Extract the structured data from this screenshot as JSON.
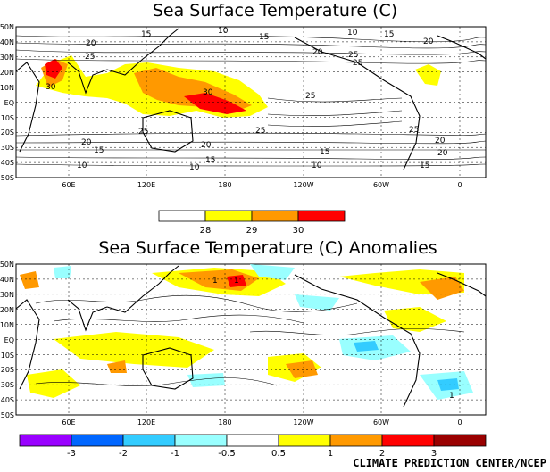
{
  "map1": {
    "title": "Sea Surface Temperature (C)",
    "lat_labels": [
      "50N",
      "40N",
      "30N",
      "20N",
      "10N",
      "EQ",
      "10S",
      "20S",
      "30S",
      "40S",
      "50S"
    ],
    "lon_labels": [
      "60E",
      "120E",
      "180",
      "120W",
      "60W",
      "0"
    ],
    "contour_labels": [
      "15",
      "10",
      "20",
      "15",
      "10",
      "15",
      "20",
      "25",
      "20",
      "25",
      "30",
      "30",
      "25",
      "25",
      "25",
      "25",
      "20",
      "25",
      "20",
      "20",
      "15",
      "15",
      "20",
      "15",
      "10",
      "10",
      "15",
      "10"
    ],
    "legend_values": [
      "28",
      "29",
      "30"
    ],
    "legend_colors": [
      "#ffffff",
      "#ffff00",
      "#ff9900",
      "#ff0000",
      "#ff0000"
    ]
  },
  "map2": {
    "title": "Sea Surface Temperature (C) Anomalies",
    "lat_labels": [
      "50N",
      "40N",
      "30N",
      "20N",
      "10N",
      "EQ",
      "10S",
      "20S",
      "30S",
      "40S",
      "50S"
    ],
    "lon_labels": [
      "60E",
      "120E",
      "180",
      "120W",
      "60W",
      "0"
    ],
    "contour_labels": [
      "1",
      "1",
      "1"
    ],
    "legend_values": [
      "-3",
      "-2",
      "-1",
      "-0.5",
      "0.5",
      "1",
      "2",
      "3"
    ],
    "legend_colors": [
      "#9900ff",
      "#0066ff",
      "#33ccff",
      "#99ffff",
      "#ffffff",
      "#ffff00",
      "#ff9900",
      "#ff0000",
      "#990000"
    ]
  },
  "credit": "CLIMATE PREDICTION CENTER/NCEP",
  "colors": {
    "warm_yellow": "#ffff00",
    "orange": "#ff9900",
    "red": "#ff0000",
    "cyan": "#99ffff",
    "light_blue": "#33ccff"
  }
}
